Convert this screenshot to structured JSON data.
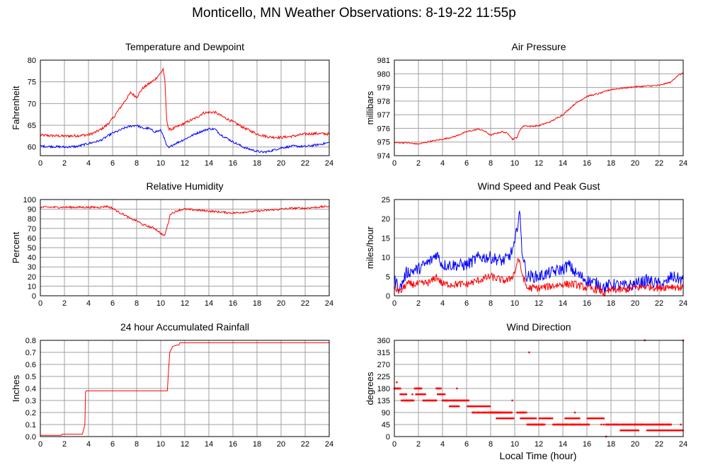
{
  "page": {
    "title": "Monticello, MN Weather Observations: 8-19-22 11:55p",
    "x_axis_label": "Local Time (hour)"
  },
  "colors": {
    "red": "#ff0000",
    "blue": "#0000ff",
    "grid": "#a0a0a0"
  },
  "chart_data": [
    {
      "id": "temp",
      "type": "line",
      "title": "Temperature and Dewpoint",
      "ylabel": "Fahrenheit",
      "xlim": [
        0,
        24
      ],
      "ylim": [
        58,
        80
      ],
      "yticks": [
        60,
        65,
        70,
        75,
        80
      ],
      "xticks": [
        0,
        2,
        4,
        6,
        8,
        10,
        12,
        14,
        16,
        18,
        20,
        22,
        24
      ],
      "series": [
        {
          "color": "#ff0000",
          "jitter": 0.3,
          "x": [
            0,
            1,
            2,
            3,
            4,
            4.5,
            5,
            5.5,
            6,
            6.5,
            7,
            7.5,
            8,
            8.5,
            9,
            9.5,
            10,
            10.2,
            10.35,
            10.5,
            10.7,
            11,
            12,
            13,
            13.5,
            14,
            14.5,
            15,
            16,
            17,
            18,
            19,
            20,
            21,
            22,
            23,
            24
          ],
          "y": [
            62.7,
            62.6,
            62.5,
            62.6,
            62.8,
            63.3,
            64,
            65,
            66.5,
            68.5,
            70.5,
            72.5,
            71.5,
            73.5,
            74.5,
            75.5,
            77,
            78,
            75,
            66,
            64,
            64.2,
            65.5,
            66.8,
            67.8,
            68,
            68,
            67.2,
            65.8,
            64.3,
            63,
            62.3,
            62.2,
            62.5,
            63,
            63.1,
            63
          ]
        },
        {
          "color": "#0000ff",
          "jitter": 0.25,
          "x": [
            0,
            1,
            2,
            3,
            4,
            5,
            6,
            6.5,
            7,
            7.5,
            8,
            8.5,
            9,
            9.5,
            10,
            10.2,
            10.5,
            10.7,
            11,
            12,
            13,
            14,
            14.5,
            15,
            16,
            17,
            18,
            18.5,
            19,
            20,
            21,
            22,
            23,
            24
          ],
          "y": [
            60.2,
            60.1,
            60,
            60.1,
            60.8,
            61.5,
            63.2,
            63.7,
            64.4,
            64.8,
            65,
            64.3,
            64.3,
            63.5,
            63.8,
            62.8,
            60.2,
            59.8,
            60.5,
            61.8,
            63.2,
            64.2,
            64.1,
            62.8,
            61.2,
            59.8,
            59,
            58.8,
            59,
            59.8,
            60.2,
            60.1,
            60.5,
            61
          ]
        }
      ]
    },
    {
      "id": "pressure",
      "type": "line",
      "title": "Air Pressure",
      "ylabel": "millibars",
      "xlim": [
        0,
        24
      ],
      "ylim": [
        974,
        981
      ],
      "yticks": [
        974,
        975,
        976,
        977,
        978,
        979,
        980,
        981
      ],
      "xticks": [
        0,
        2,
        4,
        6,
        8,
        10,
        12,
        14,
        16,
        18,
        20,
        22,
        24
      ],
      "series": [
        {
          "color": "#ff0000",
          "jitter": 0.05,
          "x": [
            0,
            1,
            2,
            3,
            4,
            5,
            6,
            7,
            7.5,
            8,
            8.5,
            9,
            9.5,
            9.8,
            10.2,
            10.5,
            10.8,
            11.3,
            12,
            13,
            14,
            15,
            16,
            17,
            18,
            19,
            20,
            21,
            22,
            23,
            23.5,
            24
          ],
          "y": [
            974.95,
            974.95,
            974.85,
            975.05,
            975.2,
            975.4,
            975.75,
            975.95,
            975.8,
            975.5,
            975.65,
            975.75,
            975.6,
            975.2,
            975.35,
            976,
            976.2,
            976.15,
            976.2,
            976.5,
            977,
            977.8,
            978.35,
            978.55,
            978.85,
            978.95,
            979.05,
            979.1,
            979.15,
            979.4,
            979.85,
            980.05
          ]
        }
      ]
    },
    {
      "id": "humidity",
      "type": "line",
      "title": "Relative Humidity",
      "ylabel": "Percent",
      "xlim": [
        0,
        24
      ],
      "ylim": [
        0,
        100
      ],
      "yticks": [
        0,
        10,
        20,
        30,
        40,
        50,
        60,
        70,
        80,
        90,
        100
      ],
      "xticks": [
        0,
        2,
        4,
        6,
        8,
        10,
        12,
        14,
        16,
        18,
        20,
        22,
        24
      ],
      "series": [
        {
          "color": "#ff0000",
          "jitter": 1.0,
          "x": [
            0,
            1,
            2,
            3,
            4,
            5,
            5.5,
            6,
            6.5,
            7,
            7.5,
            8,
            8.5,
            9,
            9.5,
            10,
            10.3,
            10.5,
            10.8,
            11.5,
            12,
            13,
            14,
            15,
            16,
            17,
            18,
            19,
            20,
            21,
            22,
            23,
            24
          ],
          "y": [
            92,
            92,
            92,
            92,
            92,
            92,
            93,
            91,
            87,
            84,
            80,
            78,
            74,
            72,
            70,
            65,
            62,
            70,
            85,
            89,
            90,
            89,
            88,
            87,
            86,
            87,
            88,
            89,
            90,
            91,
            91,
            92,
            93
          ]
        }
      ]
    },
    {
      "id": "wind",
      "type": "line",
      "title": "Wind Speed and Peak Gust",
      "ylabel": "miles/hour",
      "xlim": [
        0,
        24
      ],
      "ylim": [
        0,
        25
      ],
      "yticks": [
        0,
        5,
        10,
        15,
        20,
        25
      ],
      "xticks": [
        0,
        2,
        4,
        6,
        8,
        10,
        12,
        14,
        16,
        18,
        20,
        22,
        24
      ],
      "series": [
        {
          "color": "#0000ff",
          "jitter": 1.6,
          "x": [
            0,
            0.5,
            1,
            2,
            3,
            3.5,
            4,
            5,
            6,
            7,
            8,
            9,
            9.5,
            10,
            10.2,
            10.4,
            10.6,
            11,
            12,
            13,
            14,
            14.5,
            15,
            16,
            17,
            17.5,
            18,
            19,
            20,
            21,
            22,
            22.5,
            23,
            24
          ],
          "y": [
            4,
            2,
            6,
            7,
            9,
            11,
            8,
            8,
            8,
            10,
            10,
            9,
            10,
            13,
            18,
            22,
            12,
            5,
            5,
            6,
            7,
            8,
            6,
            4,
            3,
            2,
            3,
            2.5,
            3,
            4,
            3,
            3,
            5,
            4
          ]
        },
        {
          "color": "#ff0000",
          "jitter": 1.0,
          "x": [
            0,
            0.5,
            1,
            2,
            3,
            3.5,
            4,
            5,
            6,
            7,
            8,
            9,
            9.5,
            10,
            10.3,
            10.5,
            11,
            12,
            13,
            14,
            15,
            16,
            17,
            17.5,
            18,
            19,
            20,
            21,
            22,
            23,
            24
          ],
          "y": [
            2,
            1,
            3,
            3,
            3.5,
            5,
            3,
            3,
            3,
            4,
            5,
            4,
            4,
            6,
            10,
            7,
            2,
            2,
            2.5,
            3,
            3,
            2,
            1.5,
            0.5,
            1.5,
            1.5,
            2,
            2.5,
            2,
            2.5,
            2
          ]
        }
      ]
    },
    {
      "id": "rain",
      "type": "line",
      "title": "24 hour Accumulated Rainfall",
      "ylabel": "Inches",
      "xlim": [
        0,
        24
      ],
      "ylim": [
        0,
        0.8
      ],
      "yticks": [
        0.0,
        0.1,
        0.2,
        0.3,
        0.4,
        0.5,
        0.6,
        0.7,
        0.8
      ],
      "yticklabels": [
        "0.0",
        "0.1",
        "0.2",
        "0.3",
        "0.4",
        "0.5",
        "0.6",
        "0.7",
        "0.8"
      ],
      "xticks": [
        0,
        2,
        4,
        6,
        8,
        10,
        12,
        14,
        16,
        18,
        20,
        22,
        24
      ],
      "series": [
        {
          "color": "#ff0000",
          "jitter": 0,
          "x": [
            0,
            1.75,
            1.8,
            3.5,
            3.7,
            3.75,
            3.8,
            10.55,
            10.65,
            10.75,
            11.0,
            11.3,
            11.5,
            11.6,
            12,
            24
          ],
          "y": [
            0.01,
            0.01,
            0.02,
            0.02,
            0.1,
            0.37,
            0.38,
            0.38,
            0.55,
            0.7,
            0.75,
            0.76,
            0.76,
            0.78,
            0.78,
            0.78
          ]
        }
      ]
    },
    {
      "id": "direction",
      "type": "scatter",
      "title": "Wind Direction",
      "ylabel": "degrees",
      "xlim": [
        0,
        24
      ],
      "ylim": [
        0,
        360
      ],
      "yticks": [
        0,
        45,
        90,
        135,
        180,
        225,
        270,
        315,
        360
      ],
      "xticks": [
        0,
        2,
        4,
        6,
        8,
        10,
        12,
        14,
        16,
        18,
        20,
        22,
        24
      ],
      "series": [
        {
          "color": "#ff0000",
          "segments": [
            {
              "x0": 0,
              "x1": 0.5,
              "y": 180
            },
            {
              "x0": 0.5,
              "x1": 1.0,
              "y": 158
            },
            {
              "x0": 0.6,
              "x1": 1.6,
              "y": 135
            },
            {
              "x0": 1.7,
              "x1": 2.3,
              "y": 180
            },
            {
              "x0": 1.8,
              "x1": 2.6,
              "y": 158
            },
            {
              "x0": 2.4,
              "x1": 3.5,
              "y": 135
            },
            {
              "x0": 3.5,
              "x1": 3.9,
              "y": 180
            },
            {
              "x0": 3.6,
              "x1": 4.2,
              "y": 158
            },
            {
              "x0": 4.0,
              "x1": 6.2,
              "y": 135
            },
            {
              "x0": 4.6,
              "x1": 5.4,
              "y": 113
            },
            {
              "x0": 6.0,
              "x1": 8.0,
              "y": 113
            },
            {
              "x0": 6.5,
              "x1": 8.8,
              "y": 90
            },
            {
              "x0": 8.0,
              "x1": 9.8,
              "y": 90
            },
            {
              "x0": 8.5,
              "x1": 10.0,
              "y": 68
            },
            {
              "x0": 10.2,
              "x1": 11.0,
              "y": 90
            },
            {
              "x0": 10.5,
              "x1": 11.8,
              "y": 68
            },
            {
              "x0": 11.0,
              "x1": 12.5,
              "y": 45
            },
            {
              "x0": 12.0,
              "x1": 13.2,
              "y": 68
            },
            {
              "x0": 13.2,
              "x1": 16.2,
              "y": 45
            },
            {
              "x0": 14.2,
              "x1": 15.4,
              "y": 68
            },
            {
              "x0": 16.0,
              "x1": 17.4,
              "y": 68
            },
            {
              "x0": 17.4,
              "x1": 19.0,
              "y": 45
            },
            {
              "x0": 18.8,
              "x1": 20.3,
              "y": 23
            },
            {
              "x0": 19.0,
              "x1": 21.5,
              "y": 45
            },
            {
              "x0": 21.5,
              "x1": 23.0,
              "y": 45
            },
            {
              "x0": 21.0,
              "x1": 24.0,
              "y": 23
            }
          ],
          "points": [
            [
              0.2,
              203
            ],
            [
              0.3,
              180
            ],
            [
              1.5,
              158
            ],
            [
              5.2,
              180
            ],
            [
              7.0,
              113
            ],
            [
              9.8,
              135
            ],
            [
              11.2,
              315
            ],
            [
              12.2,
              45
            ],
            [
              15.0,
              90
            ],
            [
              17.2,
              45
            ],
            [
              17.6,
              0
            ],
            [
              20.8,
              360
            ],
            [
              24.0,
              360
            ],
            [
              23.8,
              45
            ]
          ]
        }
      ]
    }
  ]
}
